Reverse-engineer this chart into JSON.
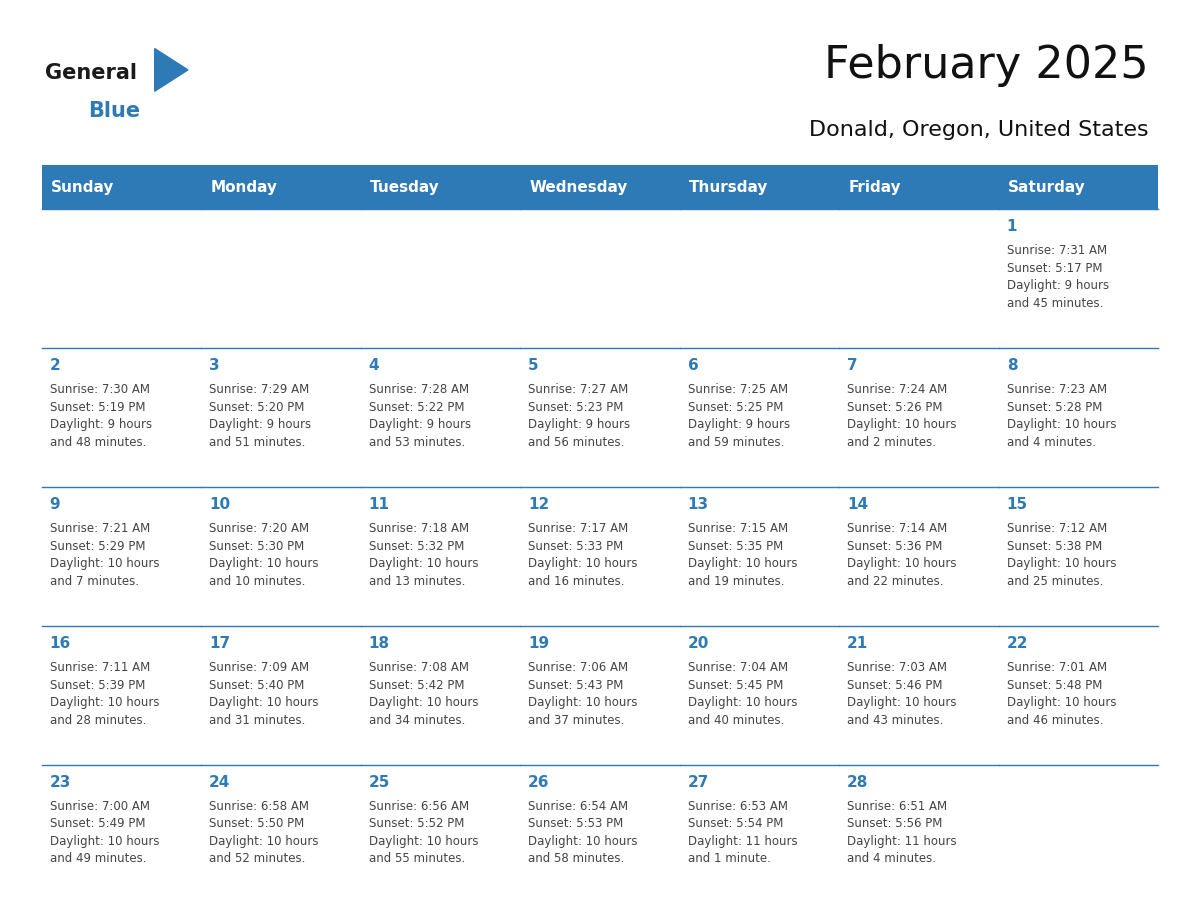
{
  "title": "February 2025",
  "subtitle": "Donald, Oregon, United States",
  "header_bg": "#2E7AB6",
  "header_text_color": "#FFFFFF",
  "cell_border_color": "#2E7AB6",
  "day_number_color": "#2E7AB6",
  "text_color": "#444444",
  "bg_color": "#FFFFFF",
  "days_of_week": [
    "Sunday",
    "Monday",
    "Tuesday",
    "Wednesday",
    "Thursday",
    "Friday",
    "Saturday"
  ],
  "weeks": [
    [
      {
        "day": null,
        "info": ""
      },
      {
        "day": null,
        "info": ""
      },
      {
        "day": null,
        "info": ""
      },
      {
        "day": null,
        "info": ""
      },
      {
        "day": null,
        "info": ""
      },
      {
        "day": null,
        "info": ""
      },
      {
        "day": 1,
        "info": "Sunrise: 7:31 AM\nSunset: 5:17 PM\nDaylight: 9 hours\nand 45 minutes."
      }
    ],
    [
      {
        "day": 2,
        "info": "Sunrise: 7:30 AM\nSunset: 5:19 PM\nDaylight: 9 hours\nand 48 minutes."
      },
      {
        "day": 3,
        "info": "Sunrise: 7:29 AM\nSunset: 5:20 PM\nDaylight: 9 hours\nand 51 minutes."
      },
      {
        "day": 4,
        "info": "Sunrise: 7:28 AM\nSunset: 5:22 PM\nDaylight: 9 hours\nand 53 minutes."
      },
      {
        "day": 5,
        "info": "Sunrise: 7:27 AM\nSunset: 5:23 PM\nDaylight: 9 hours\nand 56 minutes."
      },
      {
        "day": 6,
        "info": "Sunrise: 7:25 AM\nSunset: 5:25 PM\nDaylight: 9 hours\nand 59 minutes."
      },
      {
        "day": 7,
        "info": "Sunrise: 7:24 AM\nSunset: 5:26 PM\nDaylight: 10 hours\nand 2 minutes."
      },
      {
        "day": 8,
        "info": "Sunrise: 7:23 AM\nSunset: 5:28 PM\nDaylight: 10 hours\nand 4 minutes."
      }
    ],
    [
      {
        "day": 9,
        "info": "Sunrise: 7:21 AM\nSunset: 5:29 PM\nDaylight: 10 hours\nand 7 minutes."
      },
      {
        "day": 10,
        "info": "Sunrise: 7:20 AM\nSunset: 5:30 PM\nDaylight: 10 hours\nand 10 minutes."
      },
      {
        "day": 11,
        "info": "Sunrise: 7:18 AM\nSunset: 5:32 PM\nDaylight: 10 hours\nand 13 minutes."
      },
      {
        "day": 12,
        "info": "Sunrise: 7:17 AM\nSunset: 5:33 PM\nDaylight: 10 hours\nand 16 minutes."
      },
      {
        "day": 13,
        "info": "Sunrise: 7:15 AM\nSunset: 5:35 PM\nDaylight: 10 hours\nand 19 minutes."
      },
      {
        "day": 14,
        "info": "Sunrise: 7:14 AM\nSunset: 5:36 PM\nDaylight: 10 hours\nand 22 minutes."
      },
      {
        "day": 15,
        "info": "Sunrise: 7:12 AM\nSunset: 5:38 PM\nDaylight: 10 hours\nand 25 minutes."
      }
    ],
    [
      {
        "day": 16,
        "info": "Sunrise: 7:11 AM\nSunset: 5:39 PM\nDaylight: 10 hours\nand 28 minutes."
      },
      {
        "day": 17,
        "info": "Sunrise: 7:09 AM\nSunset: 5:40 PM\nDaylight: 10 hours\nand 31 minutes."
      },
      {
        "day": 18,
        "info": "Sunrise: 7:08 AM\nSunset: 5:42 PM\nDaylight: 10 hours\nand 34 minutes."
      },
      {
        "day": 19,
        "info": "Sunrise: 7:06 AM\nSunset: 5:43 PM\nDaylight: 10 hours\nand 37 minutes."
      },
      {
        "day": 20,
        "info": "Sunrise: 7:04 AM\nSunset: 5:45 PM\nDaylight: 10 hours\nand 40 minutes."
      },
      {
        "day": 21,
        "info": "Sunrise: 7:03 AM\nSunset: 5:46 PM\nDaylight: 10 hours\nand 43 minutes."
      },
      {
        "day": 22,
        "info": "Sunrise: 7:01 AM\nSunset: 5:48 PM\nDaylight: 10 hours\nand 46 minutes."
      }
    ],
    [
      {
        "day": 23,
        "info": "Sunrise: 7:00 AM\nSunset: 5:49 PM\nDaylight: 10 hours\nand 49 minutes."
      },
      {
        "day": 24,
        "info": "Sunrise: 6:58 AM\nSunset: 5:50 PM\nDaylight: 10 hours\nand 52 minutes."
      },
      {
        "day": 25,
        "info": "Sunrise: 6:56 AM\nSunset: 5:52 PM\nDaylight: 10 hours\nand 55 minutes."
      },
      {
        "day": 26,
        "info": "Sunrise: 6:54 AM\nSunset: 5:53 PM\nDaylight: 10 hours\nand 58 minutes."
      },
      {
        "day": 27,
        "info": "Sunrise: 6:53 AM\nSunset: 5:54 PM\nDaylight: 11 hours\nand 1 minute."
      },
      {
        "day": 28,
        "info": "Sunrise: 6:51 AM\nSunset: 5:56 PM\nDaylight: 11 hours\nand 4 minutes."
      },
      {
        "day": null,
        "info": ""
      }
    ]
  ],
  "logo_general_color": "#1a1a1a",
  "logo_blue_color": "#2E7AB6",
  "logo_triangle_color": "#2E7AB6",
  "title_fontsize": 32,
  "subtitle_fontsize": 16,
  "dow_fontsize": 11,
  "day_num_fontsize": 11,
  "info_fontsize": 8.5
}
